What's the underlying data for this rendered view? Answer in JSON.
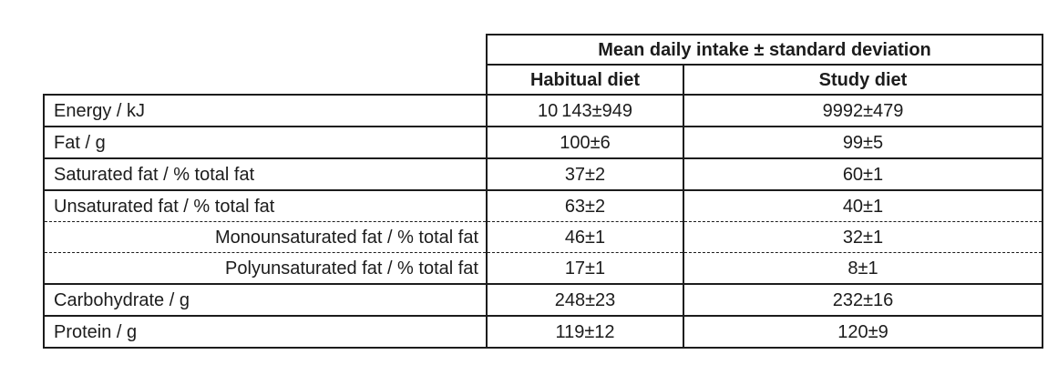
{
  "table": {
    "header": {
      "title": "Mean daily intake ± standard deviation",
      "columns": [
        "Habitual diet",
        "Study diet"
      ]
    },
    "rows": [
      {
        "label": "Energy / kJ",
        "habitual": "10 143±949",
        "study": "9992±479"
      },
      {
        "label": "Fat / g",
        "habitual": "100±6",
        "study": "99±5"
      },
      {
        "label": "Saturated fat / % total fat",
        "habitual": "37±2",
        "study": "60±1"
      },
      {
        "label": "Unsaturated fat / % total fat",
        "habitual": "63±2",
        "study": "40±1"
      },
      {
        "label": "Monounsaturated fat / % total fat",
        "habitual": "46±1",
        "study": "32±1"
      },
      {
        "label": "Polyunsaturated fat / % total fat",
        "habitual": "17±1",
        "study": "8±1"
      },
      {
        "label": "Carbohydrate / g",
        "habitual": "248±23",
        "study": "232±16"
      },
      {
        "label": "Protein / g",
        "habitual": "119±12",
        "study": "120±9"
      }
    ],
    "colors": {
      "border": "#1c1c1c",
      "text": "#1c1c1c",
      "background": "#ffffff"
    }
  }
}
